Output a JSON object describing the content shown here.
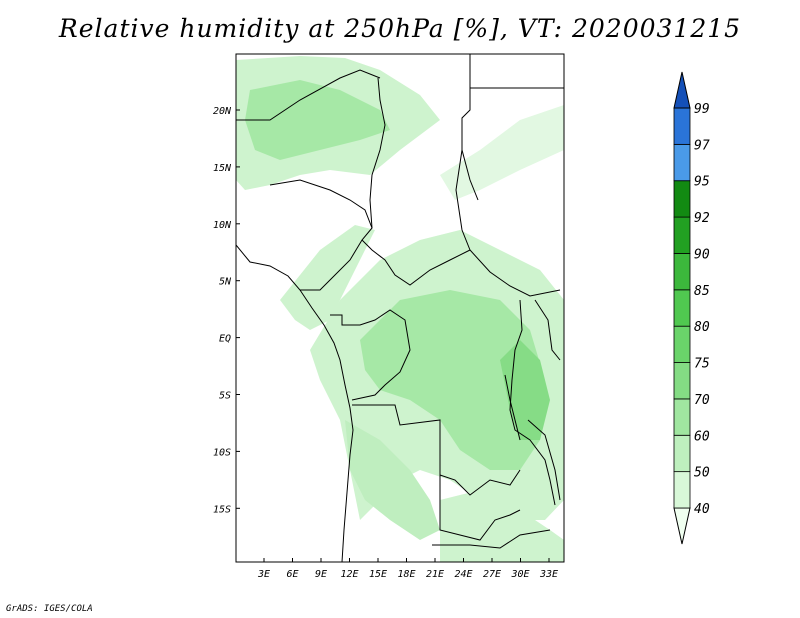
{
  "title": "Relative humidity at 250hPa [%], VT: 2020031215",
  "credit": "GrADS: IGES/COLA",
  "map": {
    "lat_labels": [
      "20N",
      "15N",
      "10N",
      "5N",
      "EQ",
      "5S",
      "10S",
      "15S"
    ],
    "lon_labels": [
      "3E",
      "6E",
      "9E",
      "12E",
      "15E",
      "18E",
      "21E",
      "24E",
      "27E",
      "30E",
      "33E"
    ],
    "field": "relative humidity",
    "level": "250hPa",
    "units": "%"
  },
  "colorbar": {
    "levels": [
      "40",
      "50",
      "60",
      "70",
      "75",
      "80",
      "85",
      "90",
      "92",
      "95",
      "97",
      "99"
    ],
    "colors": [
      "#f0fff0",
      "#d8f8d8",
      "#bef0be",
      "#a0e6a0",
      "#84dc84",
      "#6ad46a",
      "#50c850",
      "#3cb83c",
      "#22a022",
      "#128a12",
      "#4a9ae8",
      "#2a74d8",
      "#1450b8"
    ]
  },
  "colors": {
    "frame": "#000000",
    "land_background": "#ffffff",
    "humid_light": "#cef3ce",
    "humid_medium": "#a6e8a6",
    "humid_strong": "#86dc86"
  }
}
